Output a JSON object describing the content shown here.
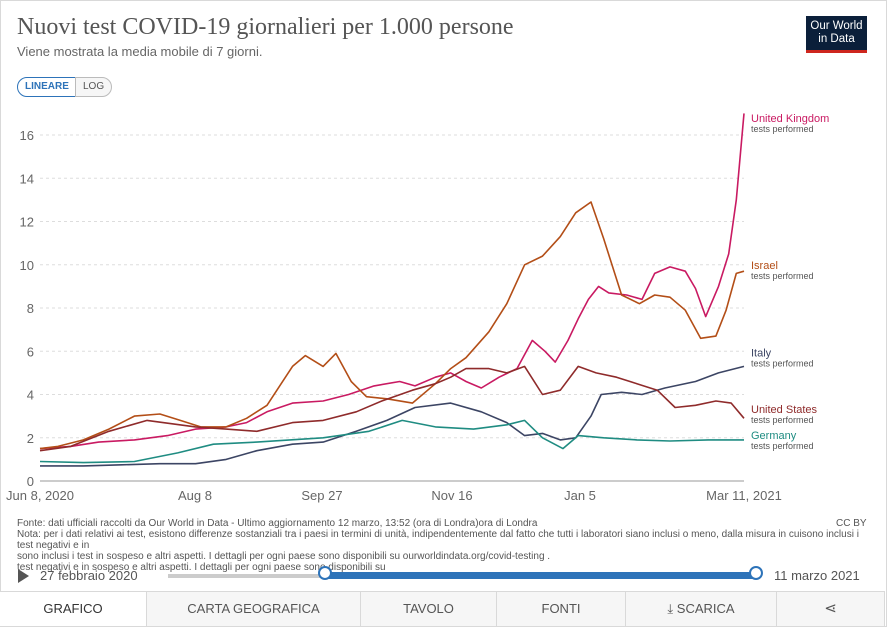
{
  "header": {
    "title": "Nuovi test COVID-19 giornalieri per 1.000 persone",
    "subtitle": "Viene mostrata la media mobile di 7 giorni.",
    "logo_line1": "Our World",
    "logo_line2": "in Data"
  },
  "scale_toggle": {
    "linear": "LINEARE",
    "log": "LOG",
    "selected": "linear"
  },
  "chart_data": {
    "type": "line",
    "xlabel": "",
    "ylabel": "",
    "ylim": [
      0,
      17
    ],
    "yticks": [
      0,
      2,
      4,
      6,
      8,
      10,
      12,
      14,
      16
    ],
    "x_tick_labels": [
      "Jun 8, 2020",
      "Aug 8",
      "Sep 27",
      "Nov 16",
      "Jan 5",
      "Mar 11, 2021"
    ],
    "x_range": [
      "2020-06-08",
      "2021-03-11"
    ],
    "grid": "horizontal-dashed",
    "legend": "right-inline",
    "series": [
      {
        "name": "United Kingdom",
        "sub": "tests performed",
        "color": "#c91a62",
        "points": [
          [
            "2020-06-08",
            1.5
          ],
          [
            "2020-06-20",
            1.6
          ],
          [
            "2020-07-01",
            1.8
          ],
          [
            "2020-07-15",
            1.9
          ],
          [
            "2020-07-28",
            2.1
          ],
          [
            "2020-08-08",
            2.4
          ],
          [
            "2020-08-20",
            2.5
          ],
          [
            "2020-08-28",
            2.7
          ],
          [
            "2020-09-05",
            3.2
          ],
          [
            "2020-09-15",
            3.6
          ],
          [
            "2020-09-27",
            3.7
          ],
          [
            "2020-10-07",
            4.0
          ],
          [
            "2020-10-17",
            4.4
          ],
          [
            "2020-10-27",
            4.6
          ],
          [
            "2020-11-02",
            4.4
          ],
          [
            "2020-11-10",
            4.8
          ],
          [
            "2020-11-16",
            5.0
          ],
          [
            "2020-11-22",
            4.6
          ],
          [
            "2020-11-28",
            4.3
          ],
          [
            "2020-12-05",
            4.8
          ],
          [
            "2020-12-12",
            5.2
          ],
          [
            "2020-12-18",
            6.5
          ],
          [
            "2020-12-23",
            6.0
          ],
          [
            "2020-12-27",
            5.5
          ],
          [
            "2021-01-01",
            6.5
          ],
          [
            "2021-01-05",
            7.5
          ],
          [
            "2021-01-09",
            8.4
          ],
          [
            "2021-01-13",
            9.0
          ],
          [
            "2021-01-17",
            8.7
          ],
          [
            "2021-01-24",
            8.6
          ],
          [
            "2021-01-30",
            8.4
          ],
          [
            "2021-02-04",
            9.6
          ],
          [
            "2021-02-10",
            9.9
          ],
          [
            "2021-02-16",
            9.7
          ],
          [
            "2021-02-20",
            8.9
          ],
          [
            "2021-02-24",
            7.6
          ],
          [
            "2021-03-01",
            9.0
          ],
          [
            "2021-03-05",
            10.5
          ],
          [
            "2021-03-08",
            13.0
          ],
          [
            "2021-03-11",
            17.0
          ]
        ],
        "label_y": 16.6
      },
      {
        "name": "Israel",
        "sub": "tests performed",
        "color": "#b34e17",
        "points": [
          [
            "2020-06-08",
            1.5
          ],
          [
            "2020-06-15",
            1.6
          ],
          [
            "2020-06-25",
            1.9
          ],
          [
            "2020-07-05",
            2.4
          ],
          [
            "2020-07-15",
            3.0
          ],
          [
            "2020-07-25",
            3.1
          ],
          [
            "2020-08-02",
            2.8
          ],
          [
            "2020-08-10",
            2.5
          ],
          [
            "2020-08-20",
            2.5
          ],
          [
            "2020-08-28",
            2.9
          ],
          [
            "2020-09-05",
            3.5
          ],
          [
            "2020-09-15",
            5.3
          ],
          [
            "2020-09-20",
            5.8
          ],
          [
            "2020-09-27",
            5.3
          ],
          [
            "2020-10-02",
            5.9
          ],
          [
            "2020-10-08",
            4.6
          ],
          [
            "2020-10-14",
            3.9
          ],
          [
            "2020-10-22",
            3.8
          ],
          [
            "2020-11-01",
            3.6
          ],
          [
            "2020-11-10",
            4.5
          ],
          [
            "2020-11-16",
            5.2
          ],
          [
            "2020-11-22",
            5.7
          ],
          [
            "2020-12-01",
            6.9
          ],
          [
            "2020-12-08",
            8.2
          ],
          [
            "2020-12-15",
            10.0
          ],
          [
            "2020-12-22",
            10.4
          ],
          [
            "2020-12-29",
            11.3
          ],
          [
            "2021-01-04",
            12.4
          ],
          [
            "2021-01-10",
            12.9
          ],
          [
            "2021-01-15",
            11.2
          ],
          [
            "2021-01-22",
            8.6
          ],
          [
            "2021-01-29",
            8.2
          ],
          [
            "2021-02-04",
            8.6
          ],
          [
            "2021-02-10",
            8.5
          ],
          [
            "2021-02-16",
            7.9
          ],
          [
            "2021-02-22",
            6.6
          ],
          [
            "2021-02-28",
            6.7
          ],
          [
            "2021-03-04",
            7.9
          ],
          [
            "2021-03-08",
            9.6
          ],
          [
            "2021-03-11",
            9.7
          ]
        ],
        "label_y": 9.8
      },
      {
        "name": "Italy",
        "sub": "tests performed",
        "color": "#3c4564",
        "points": [
          [
            "2020-06-08",
            0.7
          ],
          [
            "2020-06-25",
            0.7
          ],
          [
            "2020-07-10",
            0.75
          ],
          [
            "2020-07-25",
            0.8
          ],
          [
            "2020-08-08",
            0.8
          ],
          [
            "2020-08-20",
            1.0
          ],
          [
            "2020-09-01",
            1.4
          ],
          [
            "2020-09-15",
            1.7
          ],
          [
            "2020-09-27",
            1.8
          ],
          [
            "2020-10-10",
            2.3
          ],
          [
            "2020-10-22",
            2.8
          ],
          [
            "2020-11-02",
            3.4
          ],
          [
            "2020-11-16",
            3.6
          ],
          [
            "2020-11-28",
            3.2
          ],
          [
            "2020-12-08",
            2.7
          ],
          [
            "2020-12-15",
            2.1
          ],
          [
            "2020-12-22",
            2.2
          ],
          [
            "2020-12-29",
            1.9
          ],
          [
            "2021-01-04",
            2.0
          ],
          [
            "2021-01-10",
            3.0
          ],
          [
            "2021-01-14",
            4.0
          ],
          [
            "2021-01-22",
            4.1
          ],
          [
            "2021-01-30",
            4.0
          ],
          [
            "2021-02-08",
            4.3
          ],
          [
            "2021-02-20",
            4.6
          ],
          [
            "2021-03-01",
            5.0
          ],
          [
            "2021-03-11",
            5.3
          ]
        ],
        "label_y": 5.75
      },
      {
        "name": "United States",
        "sub": "tests performed",
        "color": "#8f2b2b",
        "points": [
          [
            "2020-06-08",
            1.4
          ],
          [
            "2020-06-20",
            1.6
          ],
          [
            "2020-07-05",
            2.3
          ],
          [
            "2020-07-20",
            2.8
          ],
          [
            "2020-08-08",
            2.5
          ],
          [
            "2020-08-20",
            2.4
          ],
          [
            "2020-09-01",
            2.3
          ],
          [
            "2020-09-15",
            2.7
          ],
          [
            "2020-09-27",
            2.8
          ],
          [
            "2020-10-10",
            3.2
          ],
          [
            "2020-10-20",
            3.7
          ],
          [
            "2020-11-01",
            4.2
          ],
          [
            "2020-11-10",
            4.5
          ],
          [
            "2020-11-16",
            4.8
          ],
          [
            "2020-11-22",
            5.2
          ],
          [
            "2020-12-01",
            5.2
          ],
          [
            "2020-12-08",
            5.0
          ],
          [
            "2020-12-15",
            5.3
          ],
          [
            "2020-12-22",
            4.0
          ],
          [
            "2020-12-29",
            4.2
          ],
          [
            "2021-01-05",
            5.3
          ],
          [
            "2021-01-12",
            5.0
          ],
          [
            "2021-01-20",
            4.8
          ],
          [
            "2021-01-28",
            4.5
          ],
          [
            "2021-02-05",
            4.2
          ],
          [
            "2021-02-12",
            3.4
          ],
          [
            "2021-02-20",
            3.5
          ],
          [
            "2021-02-28",
            3.7
          ],
          [
            "2021-03-06",
            3.6
          ],
          [
            "2021-03-11",
            2.9
          ]
        ],
        "label_y": 3.15
      },
      {
        "name": "Germany",
        "sub": "tests performed",
        "color": "#1f8c82",
        "points": [
          [
            "2020-06-08",
            0.9
          ],
          [
            "2020-06-25",
            0.85
          ],
          [
            "2020-07-15",
            0.9
          ],
          [
            "2020-08-01",
            1.3
          ],
          [
            "2020-08-15",
            1.7
          ],
          [
            "2020-09-01",
            1.8
          ],
          [
            "2020-09-27",
            2.0
          ],
          [
            "2020-10-15",
            2.3
          ],
          [
            "2020-10-28",
            2.8
          ],
          [
            "2020-11-10",
            2.5
          ],
          [
            "2020-11-25",
            2.4
          ],
          [
            "2020-12-08",
            2.6
          ],
          [
            "2020-12-15",
            2.8
          ],
          [
            "2020-12-22",
            2.0
          ],
          [
            "2020-12-30",
            1.5
          ],
          [
            "2021-01-05",
            2.1
          ],
          [
            "2021-01-15",
            2.0
          ],
          [
            "2021-01-28",
            1.9
          ],
          [
            "2021-02-10",
            1.85
          ],
          [
            "2021-02-25",
            1.9
          ],
          [
            "2021-03-11",
            1.9
          ]
        ],
        "label_y": 1.95
      }
    ]
  },
  "source": {
    "line1": "Fonte: dati ufficiali raccolti da Our World in Data - Ultimo aggiornamento 12 marzo, 13:52 (ora di Londra)ora di Londra",
    "line2": "Nota: per i dati relativi ai test, esistono differenze sostanziali tra i paesi in termini di unità, indipendentemente dal fatto che tutti i laboratori siano inclusi o meno, dalla misura in cuisono inclusi i test negativi e in",
    "line3": "sono inclusi i test in sospeso e altri aspetti. I dettagli per ogni paese sono disponibili su ourworldindata.org/covid-testing .",
    "line4": "test negativi e in sospeso e altri aspetti. I dettagli per ogni paese sono disponibili su",
    "license": "CC BY"
  },
  "timeline": {
    "start_label": "27 febbraio 2020",
    "end_label": "11 marzo 2021",
    "range_start_fraction": 0.29,
    "range_end_fraction": 1.0
  },
  "tabs": [
    {
      "label": "GRAFICO",
      "name": "tab-grafico",
      "width": 147,
      "active": true
    },
    {
      "label": "CARTA GEOGRAFICA",
      "name": "tab-carta-geografica",
      "width": 214
    },
    {
      "label": "TAVOLO",
      "name": "tab-tavolo",
      "width": 136
    },
    {
      "label": "FONTI",
      "name": "tab-fonti",
      "width": 129
    },
    {
      "label": "SCARICA",
      "name": "tab-scarica",
      "width": 151,
      "icon": "download-icon"
    },
    {
      "label": "",
      "name": "tab-share",
      "width": 108,
      "icon": "share-icon"
    }
  ]
}
